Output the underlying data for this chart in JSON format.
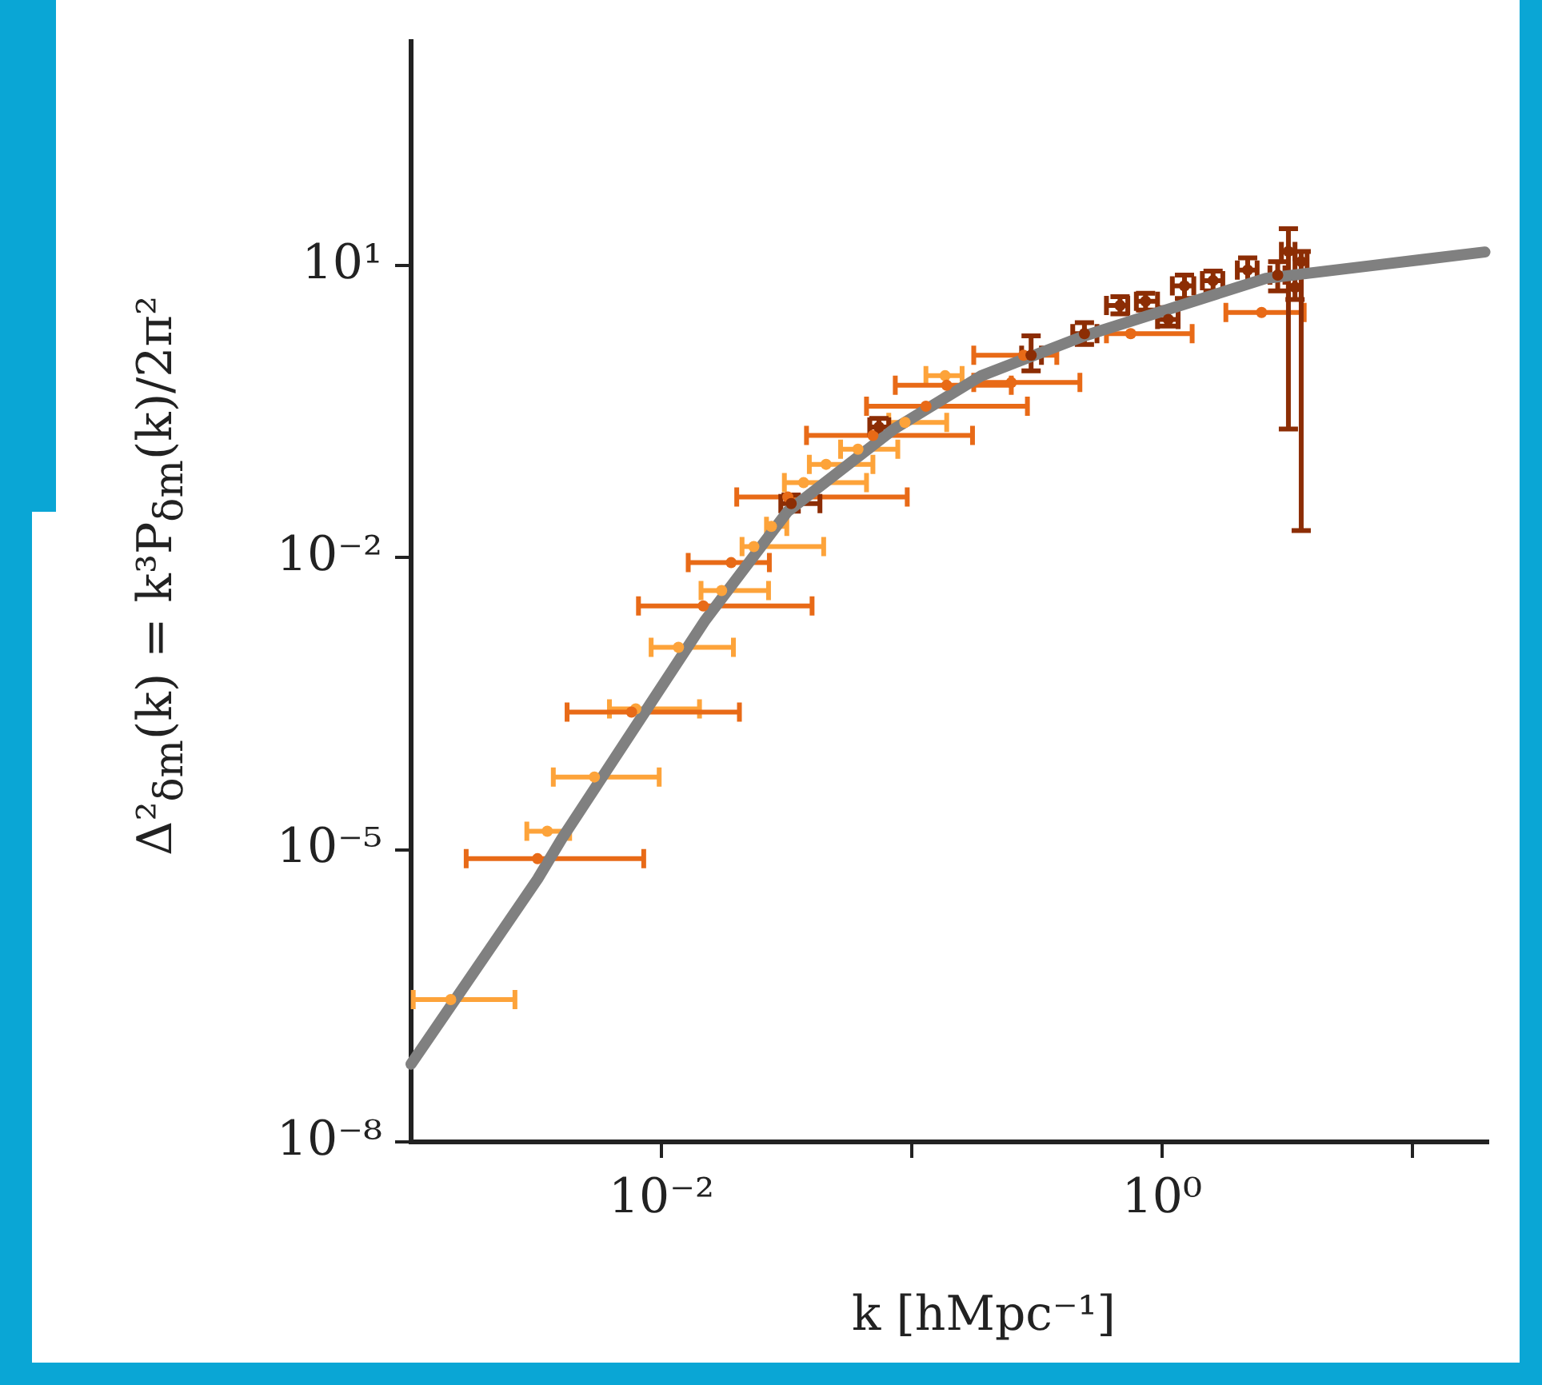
{
  "chart_data": {
    "type": "scatter",
    "xlabel": "k [hMpc⁻¹]",
    "ylabel": "Δ²$_{δm}$(k) = k³P$_{δm}$(k)/2π²",
    "log": "xy",
    "xlim": [
      0.001,
      20
    ],
    "ylim": [
      1e-08,
      2000
    ],
    "xticks": [
      {
        "value": 0.01,
        "label": "10⁻²"
      },
      {
        "value": 0.1,
        "label": null
      },
      {
        "value": 1,
        "label": "10⁰"
      },
      {
        "value": 10,
        "label": null
      }
    ],
    "yticks": [
      {
        "value": 1e-08,
        "label": "10⁻⁸"
      },
      {
        "value": 1e-05,
        "label": "10⁻⁵"
      },
      {
        "value": 0.01,
        "label": "10⁻²"
      },
      {
        "value": 10,
        "label": "10¹"
      }
    ],
    "series": [
      {
        "color": "#fda33a",
        "marker": "circle",
        "x": [
          0.00144,
          0.0035,
          0.0054,
          0.0079,
          0.0117,
          0.0174,
          0.0234,
          0.0275,
          0.037,
          0.0455,
          0.061,
          0.094,
          0.136
        ],
        "values": [
          2.9e-07,
          1.55e-05,
          5.6e-05,
          0.00028,
          0.0012,
          0.0046,
          0.013,
          0.021,
          0.059,
          0.091,
          0.13,
          0.245,
          0.74
        ],
        "xerrors": [
          [
            0.00102,
            0.0026
          ],
          [
            0.0029,
            0.0043
          ],
          [
            0.0037,
            0.0098
          ],
          [
            0.0062,
            0.0142
          ],
          [
            0.0091,
            0.0194
          ],
          [
            0.0144,
            0.0268
          ],
          [
            0.021,
            0.0445
          ],
          [
            0.0263,
            0.0317
          ],
          [
            0.031,
            0.066
          ],
          [
            0.039,
            0.07
          ],
          [
            0.052,
            0.088
          ],
          [
            0.081,
            0.138
          ],
          [
            0.114,
            0.159
          ]
        ]
      },
      {
        "color": "#e86a17",
        "marker": "circle",
        "x": [
          0.0032,
          0.0076,
          0.0147,
          0.019,
          0.032,
          0.07,
          0.114,
          0.138,
          0.25,
          0.28,
          0.75,
          2.5
        ],
        "values": [
          8.1e-06,
          0.00026,
          0.0032,
          0.0089,
          0.042,
          0.18,
          0.36,
          0.59,
          0.63,
          1.2,
          2.0,
          3.3
        ],
        "xerrors": [
          [
            0.00166,
            0.0085
          ],
          [
            0.0042,
            0.0205
          ],
          [
            0.0081,
            0.04
          ],
          [
            0.0128,
            0.027
          ],
          [
            0.02,
            0.096
          ],
          [
            0.038,
            0.175
          ],
          [
            0.066,
            0.29
          ],
          [
            0.086,
            0.25
          ],
          [
            0.177,
            0.47
          ],
          [
            0.177,
            0.38
          ],
          [
            0.6,
            1.32
          ],
          [
            1.8,
            3.7
          ]
        ]
      },
      {
        "color": "#8c2d04",
        "marker": "circle",
        "x": [
          0.033,
          0.074,
          0.3,
          0.49,
          0.68,
          0.86,
          1.06,
          1.23,
          1.6,
          2.2,
          2.9,
          3.2,
          3.6,
          3.4
        ],
        "values": [
          0.036,
          0.22,
          1.2,
          2.0,
          3.9,
          4.3,
          2.8,
          6.2,
          7.0,
          9.0,
          8.0,
          14,
          11,
          6.0
        ],
        "xerrors": [
          [
            0.03,
            0.043
          ],
          [
            0.068,
            0.081
          ],
          [
            0.275,
            0.33
          ],
          [
            0.44,
            0.55
          ],
          [
            0.6,
            0.73
          ],
          [
            0.79,
            0.96
          ],
          [
            0.96,
            1.16
          ],
          [
            1.1,
            1.34
          ],
          [
            1.45,
            1.75
          ],
          [
            2.0,
            2.4
          ],
          [
            2.7,
            3.1
          ],
          [
            3.0,
            3.4
          ],
          [
            3.4,
            3.8
          ],
          [
            3.2,
            3.6
          ]
        ],
        "errors": [
          [
            0.03,
            0.044
          ],
          [
            0.18,
            0.27
          ],
          [
            0.83,
            1.9
          ],
          [
            1.55,
            2.6
          ],
          [
            3.2,
            4.8
          ],
          [
            3.5,
            5.2
          ],
          [
            2.4,
            3.7
          ],
          [
            4.6,
            8.0
          ],
          [
            5.5,
            8.8
          ],
          [
            6.5,
            12
          ],
          [
            5.5,
            11
          ],
          [
            0.21,
            24
          ],
          [
            0.019,
            14
          ],
          [
            4.5,
            8.0
          ]
        ]
      },
      {
        "type": "line",
        "color": "#808080",
        "marker": "none",
        "x": [
          0.001,
          0.0032,
          0.004,
          0.015,
          0.032,
          0.085,
          0.19,
          0.49,
          2.6,
          6.9,
          19.5
        ],
        "values": [
          6.3e-08,
          5e-06,
          1.3e-05,
          0.0023,
          0.03,
          0.21,
          0.74,
          1.9,
          7.4,
          10,
          13.8
        ]
      }
    ]
  }
}
